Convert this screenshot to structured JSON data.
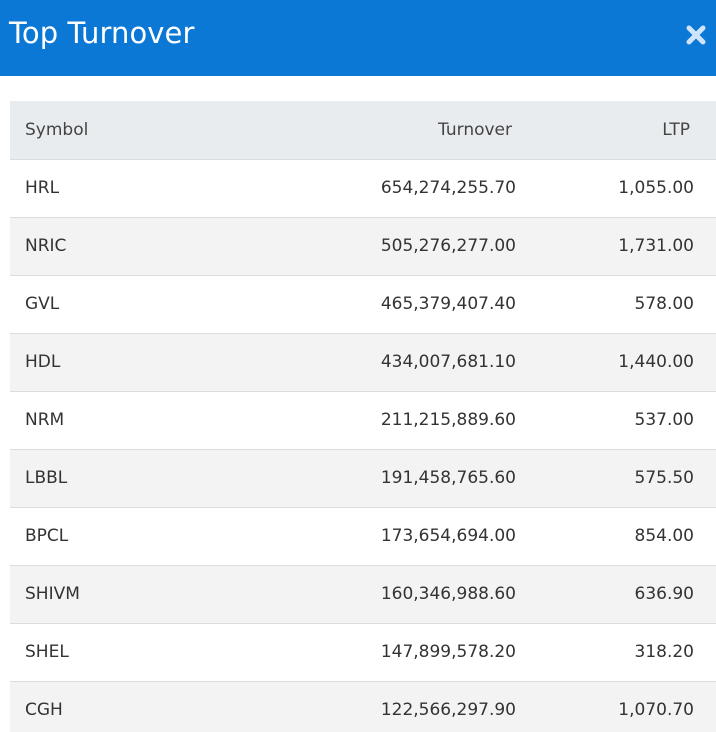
{
  "header": {
    "title": "Top Turnover",
    "close_icon": "close-icon",
    "background_color": "#0b78d6"
  },
  "table": {
    "columns": [
      "Symbol",
      "Turnover",
      "LTP"
    ],
    "rows": [
      {
        "symbol": "HRL",
        "turnover": "654,274,255.70",
        "ltp": "1,055.00"
      },
      {
        "symbol": "NRIC",
        "turnover": "505,276,277.00",
        "ltp": "1,731.00"
      },
      {
        "symbol": "GVL",
        "turnover": "465,379,407.40",
        "ltp": "578.00"
      },
      {
        "symbol": "HDL",
        "turnover": "434,007,681.10",
        "ltp": "1,440.00"
      },
      {
        "symbol": "NRM",
        "turnover": "211,215,889.60",
        "ltp": "537.00"
      },
      {
        "symbol": "LBBL",
        "turnover": "191,458,765.60",
        "ltp": "575.50"
      },
      {
        "symbol": "BPCL",
        "turnover": "173,654,694.00",
        "ltp": "854.00"
      },
      {
        "symbol": "SHIVM",
        "turnover": "160,346,988.60",
        "ltp": "636.90"
      },
      {
        "symbol": "SHEL",
        "turnover": "147,899,578.20",
        "ltp": "318.20"
      },
      {
        "symbol": "CGH",
        "turnover": "122,566,297.90",
        "ltp": "1,070.70"
      }
    ]
  }
}
